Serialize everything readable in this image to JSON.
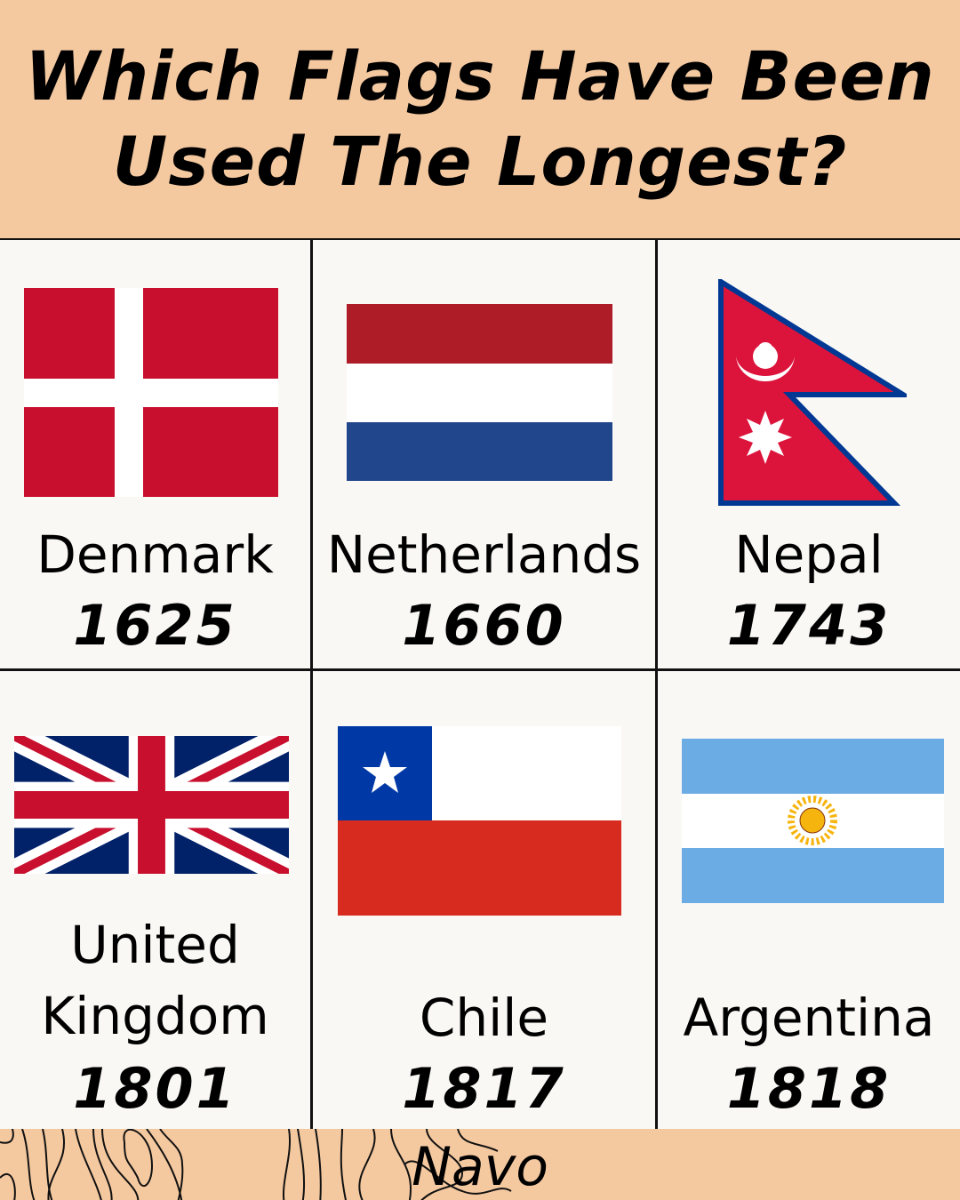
{
  "header": {
    "title_line1": "Which Flags Have Been",
    "title_line2": "Used The Longest?"
  },
  "flags": [
    {
      "country": "Denmark",
      "year": "1625",
      "icon": "denmark-flag-icon"
    },
    {
      "country": "Netherlands",
      "year": "1660",
      "icon": "netherlands-flag-icon"
    },
    {
      "country": "Nepal",
      "year": "1743",
      "icon": "nepal-flag-icon"
    },
    {
      "country_line1": "United",
      "country_line2": "Kingdom",
      "year": "1801",
      "icon": "uk-flag-icon"
    },
    {
      "country": "Chile",
      "year": "1817",
      "icon": "chile-flag-icon"
    },
    {
      "country": "Argentina",
      "year": "1818",
      "icon": "argentina-flag-icon"
    }
  ],
  "footer": {
    "brand": "Navo"
  },
  "colors": {
    "header_bg": "#f5c9a0",
    "cell_bg": "#f9f8f4"
  }
}
